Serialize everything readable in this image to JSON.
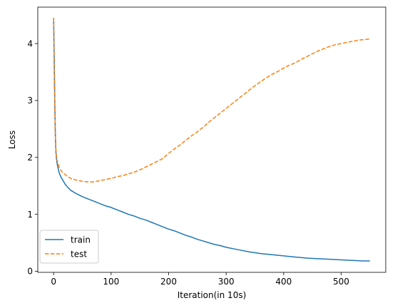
{
  "chart_data": {
    "type": "line",
    "title": "",
    "xlabel": "Iteration(in 10s)",
    "ylabel": "Loss",
    "xlim": [
      -27.5,
      577.5
    ],
    "ylim": [
      -0.02,
      4.64
    ],
    "xticks": [
      0,
      100,
      200,
      300,
      400,
      500
    ],
    "yticks": [
      0,
      1,
      2,
      3,
      4
    ],
    "grid": false,
    "legend_position": "bottom-left",
    "series": [
      {
        "name": "train",
        "color": "#1f77b4",
        "style": "solid",
        "x": [
          0,
          1,
          2,
          3,
          4,
          5,
          6,
          8,
          10,
          13,
          16,
          20,
          25,
          30,
          40,
          50,
          60,
          70,
          80,
          90,
          100,
          110,
          120,
          130,
          140,
          150,
          160,
          170,
          180,
          190,
          200,
          210,
          220,
          230,
          240,
          250,
          260,
          270,
          280,
          290,
          300,
          320,
          340,
          360,
          380,
          400,
          420,
          440,
          460,
          480,
          500,
          520,
          540,
          550
        ],
        "y": [
          4.45,
          3.8,
          3.0,
          2.4,
          2.1,
          1.98,
          1.9,
          1.8,
          1.72,
          1.65,
          1.6,
          1.53,
          1.47,
          1.42,
          1.36,
          1.31,
          1.27,
          1.23,
          1.19,
          1.15,
          1.12,
          1.08,
          1.04,
          1.0,
          0.97,
          0.93,
          0.9,
          0.86,
          0.82,
          0.78,
          0.74,
          0.71,
          0.67,
          0.63,
          0.6,
          0.56,
          0.53,
          0.5,
          0.47,
          0.45,
          0.42,
          0.38,
          0.34,
          0.31,
          0.29,
          0.27,
          0.25,
          0.23,
          0.22,
          0.21,
          0.2,
          0.19,
          0.18,
          0.18
        ]
      },
      {
        "name": "test",
        "color": "#ff7f0e",
        "style": "dashed",
        "x": [
          0,
          1,
          2,
          3,
          4,
          5,
          6,
          8,
          10,
          13,
          16,
          20,
          25,
          30,
          40,
          50,
          60,
          70,
          80,
          90,
          100,
          110,
          120,
          130,
          140,
          150,
          160,
          170,
          180,
          190,
          200,
          210,
          220,
          230,
          240,
          250,
          260,
          270,
          280,
          290,
          300,
          310,
          320,
          330,
          340,
          350,
          360,
          370,
          380,
          390,
          400,
          410,
          420,
          430,
          440,
          450,
          460,
          470,
          480,
          490,
          500,
          510,
          520,
          530,
          540,
          550
        ],
        "y": [
          4.45,
          3.6,
          2.9,
          2.4,
          2.15,
          2.02,
          1.95,
          1.88,
          1.82,
          1.77,
          1.73,
          1.7,
          1.66,
          1.63,
          1.6,
          1.58,
          1.57,
          1.57,
          1.59,
          1.61,
          1.63,
          1.66,
          1.68,
          1.71,
          1.74,
          1.78,
          1.83,
          1.88,
          1.93,
          1.98,
          2.07,
          2.15,
          2.22,
          2.3,
          2.38,
          2.45,
          2.53,
          2.62,
          2.7,
          2.78,
          2.86,
          2.94,
          3.02,
          3.1,
          3.18,
          3.26,
          3.33,
          3.4,
          3.46,
          3.51,
          3.57,
          3.62,
          3.66,
          3.72,
          3.77,
          3.82,
          3.87,
          3.91,
          3.95,
          3.98,
          4.0,
          4.02,
          4.04,
          4.06,
          4.07,
          4.08
        ]
      }
    ]
  }
}
